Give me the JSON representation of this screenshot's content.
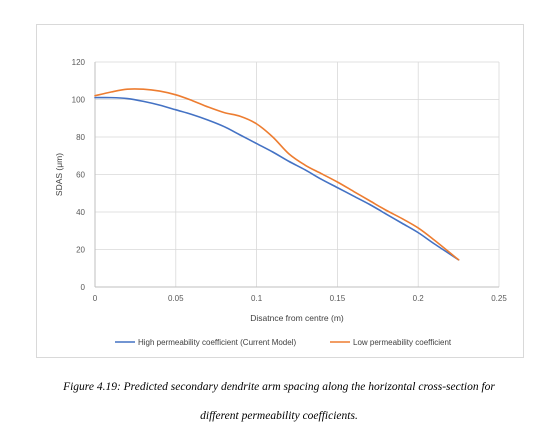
{
  "chart_data": {
    "type": "line",
    "title": "",
    "xlabel": "Disatnce from centre (m)",
    "ylabel": "SDAS (μm)",
    "xlim": [
      0,
      0.25
    ],
    "ylim": [
      0,
      120
    ],
    "xticks": [
      0,
      0.05,
      0.1,
      0.15,
      0.2,
      0.25
    ],
    "xtick_labels": [
      "0",
      "0.05",
      "0.1",
      "0.15",
      "0.2",
      "0.25"
    ],
    "yticks": [
      0,
      20,
      40,
      60,
      80,
      100,
      120
    ],
    "ytick_labels": [
      "0",
      "20",
      "40",
      "60",
      "80",
      "100",
      "120"
    ],
    "grid": true,
    "legend_position": "bottom",
    "series": [
      {
        "name": "High permeability coefficient (Current Model)",
        "color": "#4472C4",
        "x": [
          0,
          0.01,
          0.02,
          0.03,
          0.04,
          0.05,
          0.06,
          0.07,
          0.08,
          0.09,
          0.1,
          0.11,
          0.12,
          0.13,
          0.14,
          0.15,
          0.16,
          0.17,
          0.18,
          0.19,
          0.2,
          0.21,
          0.225
        ],
        "y": [
          101,
          101,
          100.5,
          99,
          97,
          94.5,
          92,
          89,
          85.5,
          81,
          76.5,
          72,
          67,
          62.5,
          57.5,
          53,
          48.5,
          44,
          39,
          34,
          29,
          23,
          14.5
        ]
      },
      {
        "name": "Low permeability coefficient",
        "color": "#ED7D31",
        "x": [
          0,
          0.01,
          0.02,
          0.03,
          0.04,
          0.05,
          0.06,
          0.07,
          0.08,
          0.09,
          0.1,
          0.11,
          0.12,
          0.13,
          0.14,
          0.15,
          0.16,
          0.17,
          0.18,
          0.19,
          0.2,
          0.21,
          0.225
        ],
        "y": [
          102,
          104,
          105.5,
          105.5,
          104.5,
          102.5,
          99.5,
          96,
          93,
          91,
          87,
          80,
          71,
          65,
          60.5,
          56,
          51,
          46,
          41,
          36.5,
          31.5,
          25,
          14.5
        ]
      }
    ]
  },
  "caption": {
    "line1": "Figure 4.19: Predicted secondary dendrite arm spacing along the horizontal cross-section for",
    "line2": "different permeability coefficients."
  }
}
